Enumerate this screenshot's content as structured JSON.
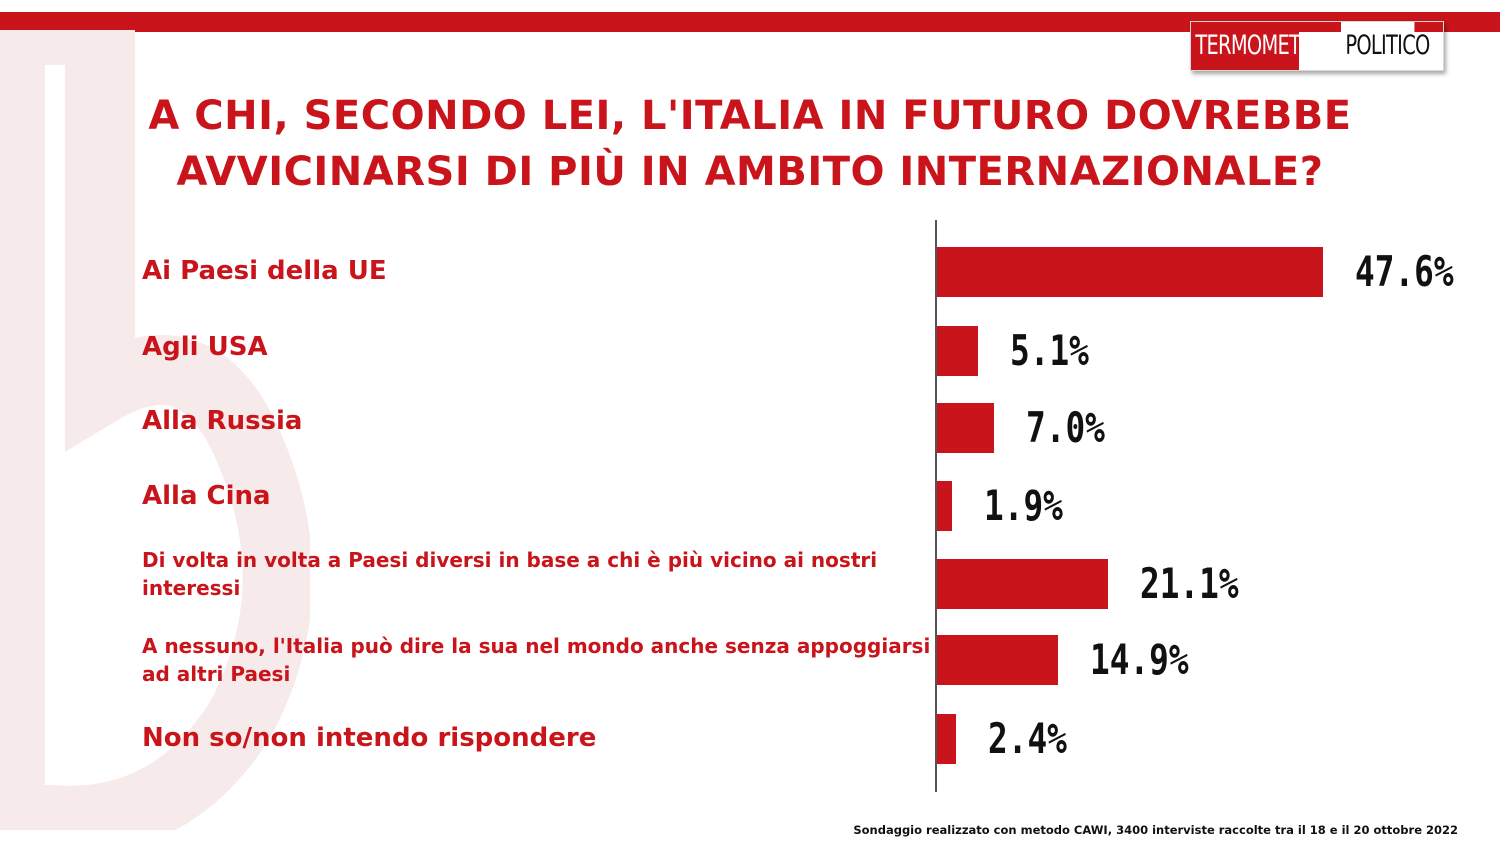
{
  "brand": {
    "name_part1": "TERMOMETRO",
    "name_part2": "POLITICO"
  },
  "title_line1": "A CHI, SECONDO LEI, L'ITALIA IN FUTURO DOVREBBE",
  "title_line2": "AVVICINARSI DI PIÙ IN AMBITO INTERNAZIONALE?",
  "footnote": "Sondaggio realizzato con metodo CAWI, 3400 interviste raccolte tra il 18 e il 20 ottobre 2022",
  "colors": {
    "accent": "#c8141a",
    "text": "#111111"
  },
  "chart_data": {
    "type": "bar",
    "orientation": "horizontal",
    "categories": [
      "Ai Paesi della UE",
      "Agli USA",
      "Alla Russia",
      "Alla Cina",
      "Di volta in volta a Paesi diversi in base a chi è più vicino ai nostri interessi",
      "A nessuno, l'Italia può dire la sua nel mondo anche senza appoggiarsi ad altri Paesi",
      "Non so/non intendo rispondere"
    ],
    "values": [
      47.6,
      5.1,
      7.0,
      1.9,
      21.1,
      14.9,
      2.4
    ],
    "value_labels": [
      "47.6%",
      "5.1%",
      "7.0%",
      "1.9%",
      "21.1%",
      "14.9%",
      "2.4%"
    ],
    "unit": "%",
    "title": "A CHI, SECONDO LEI, L'ITALIA IN FUTURO DOVREBBE AVVICINARSI DI PIÙ IN AMBITO INTERNAZIONALE?",
    "xlabel": "",
    "ylabel": "",
    "grid": false,
    "legend": "none"
  }
}
